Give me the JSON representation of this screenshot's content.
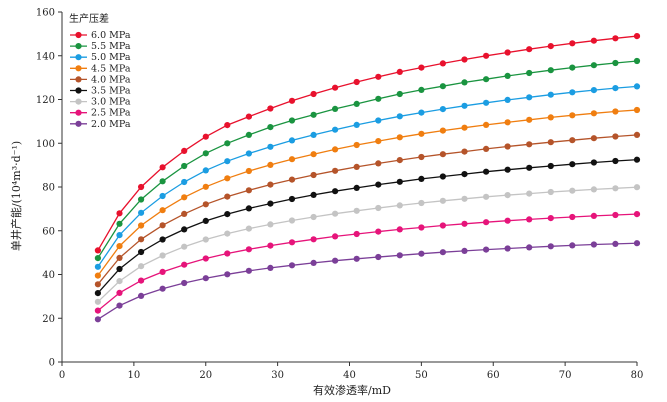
{
  "chart_data": {
    "type": "line",
    "title": "",
    "xlabel": "有效渗透率/mD",
    "ylabel": "单井产能/(10⁴m³·d⁻¹)",
    "xlim": [
      0,
      80
    ],
    "ylim": [
      0,
      160
    ],
    "xticks": [
      0,
      10,
      20,
      30,
      40,
      50,
      60,
      70,
      80
    ],
    "yticks": [
      0,
      20,
      40,
      60,
      80,
      100,
      120,
      140,
      160
    ],
    "grid": false,
    "legend": {
      "title": "生产压差",
      "placement": "top-left"
    },
    "x": [
      5,
      8,
      11,
      14,
      17,
      20,
      23,
      26,
      29,
      32,
      35,
      38,
      41,
      44,
      47,
      50,
      53,
      56,
      59,
      62,
      65,
      68,
      71,
      74,
      77,
      80
    ],
    "series": [
      {
        "name": "6.0 MPa",
        "color": "#e8112d",
        "values": [
          51.0,
          68.0,
          80.0,
          89.0,
          96.5,
          103.0,
          108.3,
          112.2,
          115.9,
          119.4,
          122.5,
          125.4,
          128.0,
          130.4,
          132.6,
          134.6,
          136.5,
          138.3,
          140.0,
          141.5,
          143.0,
          144.4,
          145.7,
          146.9,
          148.0,
          149.0
        ]
      },
      {
        "name": "5.5 MPa",
        "color": "#1a9440",
        "values": [
          47.5,
          63.2,
          74.3,
          82.6,
          89.6,
          95.4,
          100.0,
          103.8,
          107.4,
          110.4,
          113.0,
          115.7,
          118.0,
          120.3,
          122.5,
          124.4,
          126.1,
          127.8,
          129.3,
          130.8,
          132.1,
          133.4,
          134.6,
          135.7,
          136.7,
          137.6
        ]
      },
      {
        "name": "5.0 MPa",
        "color": "#1b9de2",
        "values": [
          43.5,
          58.0,
          68.2,
          75.9,
          82.3,
          87.6,
          91.8,
          95.3,
          98.4,
          101.3,
          103.8,
          106.2,
          108.4,
          110.4,
          112.3,
          114.0,
          115.6,
          117.1,
          118.5,
          119.8,
          121.0,
          122.2,
          123.3,
          124.3,
          125.2,
          126.0
        ]
      },
      {
        "name": "4.5 MPa",
        "color": "#f07e10",
        "values": [
          39.5,
          53.0,
          62.4,
          69.4,
          75.3,
          80.1,
          84.0,
          87.3,
          90.1,
          92.7,
          95.0,
          97.2,
          99.2,
          101.0,
          102.7,
          104.3,
          105.8,
          107.1,
          108.4,
          109.6,
          110.7,
          111.8,
          112.8,
          113.7,
          114.5,
          115.2
        ]
      },
      {
        "name": "4.0 MPa",
        "color": "#b5542a",
        "values": [
          35.5,
          47.6,
          56.1,
          62.5,
          67.7,
          72.1,
          75.6,
          78.5,
          81.1,
          83.4,
          85.5,
          87.4,
          89.2,
          90.8,
          92.3,
          93.7,
          95.0,
          96.2,
          97.4,
          98.5,
          99.5,
          100.5,
          101.4,
          102.3,
          103.1,
          103.8
        ]
      },
      {
        "name": "3.5 MPa",
        "color": "#111111",
        "values": [
          31.5,
          42.5,
          50.3,
          56.0,
          60.6,
          64.5,
          67.6,
          70.2,
          72.4,
          74.5,
          76.4,
          78.1,
          79.6,
          81.1,
          82.4,
          83.7,
          84.8,
          85.9,
          87.0,
          87.9,
          88.8,
          89.6,
          90.4,
          91.2,
          91.9,
          92.5
        ]
      },
      {
        "name": "3.0 MPa",
        "color": "#c4c4c4",
        "values": [
          27.5,
          37.0,
          43.8,
          48.7,
          52.7,
          56.0,
          58.7,
          61.0,
          62.9,
          64.7,
          66.3,
          67.8,
          69.1,
          70.4,
          71.6,
          72.7,
          73.7,
          74.6,
          75.5,
          76.3,
          77.0,
          77.7,
          78.3,
          78.9,
          79.4,
          79.9
        ]
      },
      {
        "name": "2.5 MPa",
        "color": "#e6147a",
        "values": [
          23.5,
          31.6,
          37.2,
          41.2,
          44.5,
          47.3,
          49.6,
          51.5,
          53.2,
          54.7,
          56.1,
          57.4,
          58.5,
          59.6,
          60.6,
          61.5,
          62.4,
          63.2,
          63.9,
          64.6,
          65.2,
          65.8,
          66.3,
          66.8,
          67.2,
          67.6
        ]
      },
      {
        "name": "2.0 MPa",
        "color": "#7b3f98",
        "values": [
          19.5,
          25.8,
          30.2,
          33.5,
          36.1,
          38.3,
          40.1,
          41.7,
          43.0,
          44.2,
          45.3,
          46.3,
          47.2,
          48.0,
          48.8,
          49.5,
          50.2,
          50.8,
          51.4,
          51.9,
          52.4,
          52.9,
          53.3,
          53.7,
          54.0,
          54.3
        ]
      }
    ]
  }
}
